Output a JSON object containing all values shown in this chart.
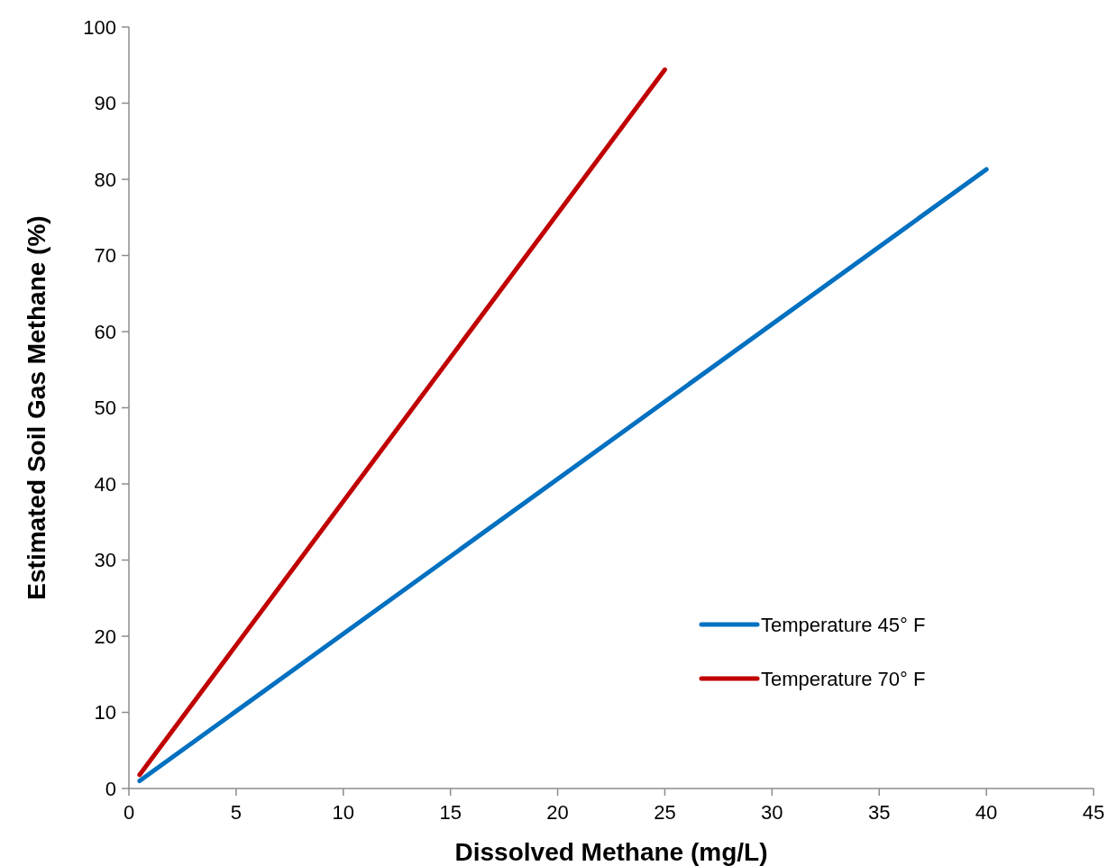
{
  "chart_data": {
    "type": "line",
    "xlabel": "Dissolved Methane (mg/L)",
    "ylabel": "Estimated Soil Gas Methane (%)",
    "xlim": [
      0,
      45
    ],
    "xticks": [
      0,
      5,
      10,
      15,
      20,
      25,
      30,
      35,
      40,
      45
    ],
    "ylim": [
      0,
      100
    ],
    "yticks": [
      0,
      10,
      20,
      30,
      40,
      50,
      60,
      70,
      80,
      90,
      100
    ],
    "grid": false,
    "legend": "right",
    "marker": "none",
    "line_style": "solid",
    "series": [
      {
        "name": "Temperature 45° F",
        "color": "#0070c0",
        "x": [
          0.5,
          40
        ],
        "values": [
          1,
          81.3
        ]
      },
      {
        "name": "Temperature 70° F",
        "color": "#c00000",
        "x": [
          0.5,
          25
        ],
        "values": [
          1.8,
          94.4
        ]
      }
    ]
  }
}
